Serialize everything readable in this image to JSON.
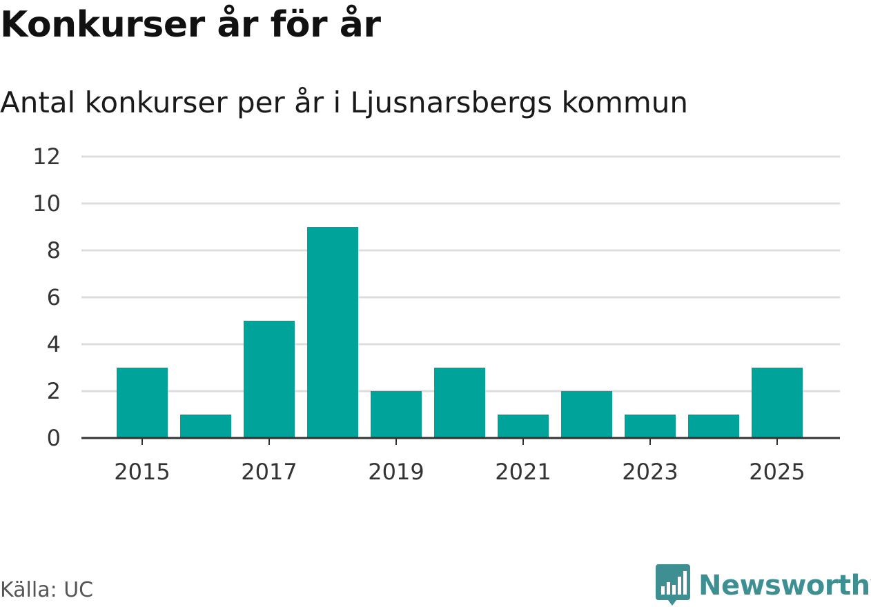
{
  "header": {
    "title": "Konkurser år för år",
    "subtitle": "Antal konkurser per år i Ljusnarsbergs kommun"
  },
  "footer": {
    "source": "Källa: UC",
    "brand": "Newsworthy"
  },
  "colors": {
    "bar": "#00a39a",
    "grid": "#dddddd",
    "axis": "#333333",
    "brand": "#3d8f91"
  },
  "icons": {
    "brand_logo": "bar-chart-badge-icon"
  },
  "chart_data": {
    "type": "bar",
    "categories": [
      "2015",
      "2016",
      "2017",
      "2018",
      "2019",
      "2020",
      "2021",
      "2022",
      "2023",
      "2024",
      "2025"
    ],
    "values": [
      3,
      1,
      5,
      9,
      2,
      3,
      1,
      2,
      1,
      1,
      3
    ],
    "x_tick_labels": [
      "2015",
      "2017",
      "2019",
      "2021",
      "2023",
      "2025"
    ],
    "y_ticks": [
      0,
      2,
      4,
      6,
      8,
      10,
      12
    ],
    "ylim": [
      0,
      12
    ],
    "grid": true,
    "legend": "none"
  }
}
